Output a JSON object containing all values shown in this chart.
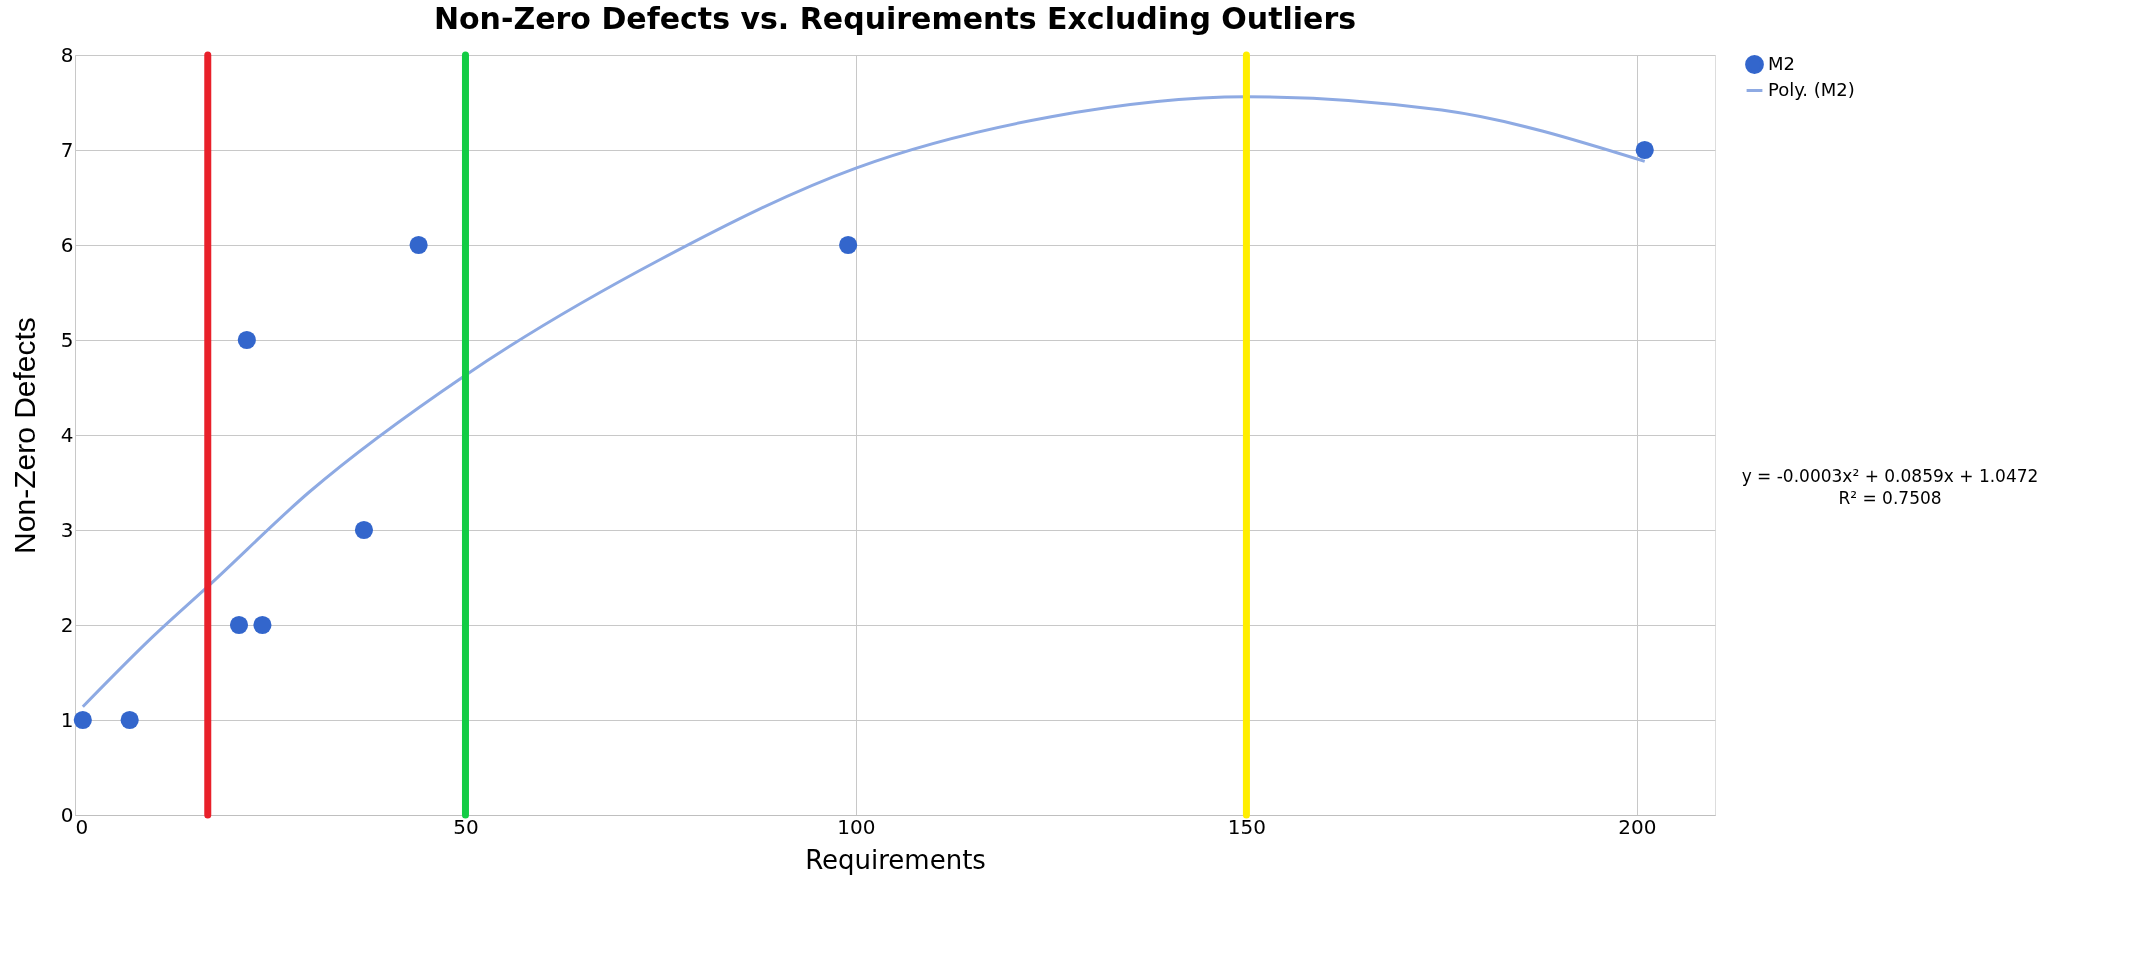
{
  "chart_data": {
    "type": "scatter",
    "title": "Non-Zero Defects vs. Requirements Excluding Outliers",
    "xlabel": "Requirements",
    "ylabel": "Non-Zero Defects",
    "x": [
      1,
      7,
      21,
      22,
      24,
      37,
      44,
      99,
      201
    ],
    "series": [
      {
        "name": "M2",
        "color": "#3366cc",
        "values": [
          1,
          1,
          2,
          5,
          2,
          3,
          6,
          6,
          7
        ],
        "marker": "circle"
      },
      {
        "name": "Poly. (M2)",
        "type": "line",
        "color": "#8eaae3",
        "x": [
          1,
          10,
          17.2,
          30,
          50,
          75,
          100,
          125,
          150,
          175,
          201
        ],
        "values": [
          1.14,
          1.88,
          2.42,
          3.4,
          4.63,
          5.85,
          6.81,
          7.35,
          7.56,
          7.42,
          6.88
        ],
        "line_style": "solid",
        "marker": "none"
      }
    ],
    "xlim": [
      0,
      210
    ],
    "xticks": [
      0,
      50,
      100,
      150,
      200
    ],
    "ylim": [
      0,
      8
    ],
    "yticks": [
      0,
      1,
      2,
      3,
      4,
      5,
      6,
      7,
      8
    ],
    "grid": true,
    "legend": "right",
    "ref_lines": [
      {
        "axis": "x",
        "value": 17,
        "color": "#e8202a"
      },
      {
        "axis": "x",
        "value": 50,
        "color": "#12cc44"
      },
      {
        "axis": "x",
        "value": 150,
        "color": "#ffee00"
      }
    ],
    "annotations": [
      "y = -0.0003x² + 0.0859x + 1.0472",
      "R² = 0.7508"
    ]
  }
}
